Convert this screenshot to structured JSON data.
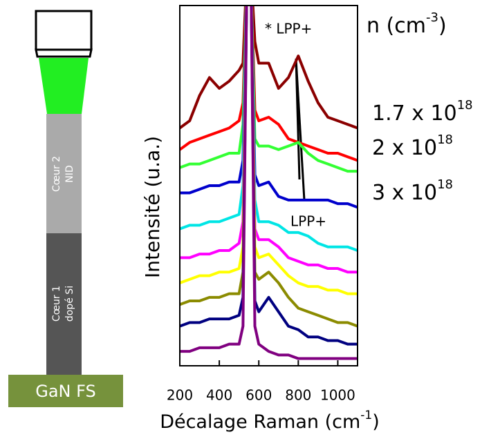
{
  "chart_data": {
    "type": "line",
    "x_label": {
      "text": "Décalage Raman (cm",
      "sup": "-1",
      "after": ")"
    },
    "y_label": "Intensité (u.a.)",
    "x": [
      200,
      250,
      300,
      350,
      400,
      450,
      500,
      520,
      540,
      560,
      580,
      600,
      650,
      700,
      750,
      800,
      850,
      900,
      950,
      1000,
      1050,
      1100
    ],
    "xlim": [
      200,
      1100
    ],
    "xticks": [
      200,
      400,
      600,
      800,
      1000
    ],
    "ylim": [
      0,
      100
    ],
    "series": [
      {
        "color": "#8b0000",
        "values": [
          66,
          68,
          75,
          80,
          77,
          79,
          82,
          84,
          110,
          110,
          90,
          84,
          84,
          77,
          80,
          86,
          79,
          73,
          69,
          68,
          67,
          66
        ]
      },
      {
        "color": "#ff0000",
        "values": [
          60,
          62,
          63,
          64,
          65,
          66,
          68,
          73,
          110,
          110,
          71,
          68,
          69,
          67,
          63,
          62,
          61,
          60,
          59,
          59,
          58,
          57
        ]
      },
      {
        "color": "#33ff33",
        "values": [
          55,
          56,
          56,
          57,
          58,
          59,
          59,
          67,
          110,
          110,
          63,
          61,
          61,
          60,
          61,
          62,
          59,
          57,
          56,
          55,
          54,
          54
        ]
      },
      {
        "color": "#0000cc",
        "values": [
          48,
          48,
          49,
          50,
          50,
          51,
          51,
          57,
          110,
          110,
          53,
          50,
          51,
          47,
          46,
          46,
          46,
          46,
          46,
          45,
          45,
          44
        ]
      },
      {
        "color": "#00e5e5",
        "values": [
          38,
          39,
          39,
          40,
          40,
          41,
          42,
          50,
          110,
          110,
          46,
          40,
          40,
          39,
          37,
          37,
          36,
          34,
          33,
          33,
          33,
          32
        ]
      },
      {
        "color": "#ff00ff",
        "values": [
          30,
          30,
          31,
          31,
          32,
          32,
          34,
          40,
          110,
          110,
          38,
          35,
          35,
          33,
          30,
          29,
          28,
          28,
          27,
          27,
          26,
          26
        ]
      },
      {
        "color": "#ffff00",
        "values": [
          23,
          24,
          25,
          25,
          26,
          26,
          27,
          33,
          110,
          110,
          33,
          30,
          31,
          28,
          25,
          23,
          22,
          22,
          21,
          21,
          20,
          20
        ]
      },
      {
        "color": "#8b8b00",
        "values": [
          17,
          18,
          18,
          19,
          19,
          20,
          20,
          26,
          110,
          110,
          26,
          24,
          26,
          23,
          19,
          16,
          15,
          14,
          13,
          12,
          12,
          11
        ]
      },
      {
        "color": "#000080",
        "values": [
          11,
          12,
          12,
          13,
          13,
          13,
          14,
          19,
          110,
          110,
          18,
          15,
          19,
          15,
          11,
          10,
          8,
          8,
          7,
          7,
          6,
          6
        ]
      },
      {
        "color": "#800080",
        "values": [
          4,
          4,
          5,
          5,
          5,
          6,
          6,
          11,
          110,
          110,
          11,
          6,
          4,
          3,
          3,
          2,
          2,
          2,
          2,
          2,
          2,
          2
        ]
      }
    ],
    "annotations": {
      "lpp_top": "* LPP+",
      "lpp_bottom": "LPP+",
      "n_header": {
        "text": "n (cm",
        "sup": "-3",
        "after": ")"
      },
      "concentrations": [
        {
          "text": "1.7 x 10",
          "sup": "18"
        },
        {
          "text": "2 x 10",
          "sup": "18"
        },
        {
          "text": "3 x 10",
          "sup": "18"
        }
      ]
    },
    "schematic": {
      "core2": [
        "Cœur 2",
        "NID"
      ],
      "core1": [
        "Cœur 1",
        "dopé Si"
      ],
      "substrate": "GaN FS"
    }
  }
}
